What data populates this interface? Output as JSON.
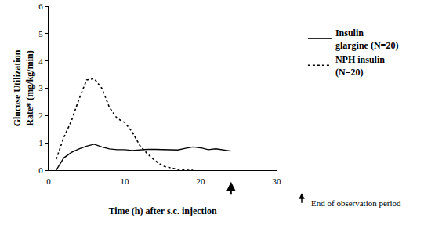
{
  "chart_data": {
    "type": "line",
    "x_label": "Time (h) after s.c. injection",
    "y_label": "Glucose Utilization Rate* (mg/kg/min)",
    "xlim": [
      0,
      30
    ],
    "xticks": [
      0,
      10,
      20,
      30
    ],
    "ylim": [
      0,
      6
    ],
    "yticks": [
      0,
      1,
      2,
      3,
      4,
      5,
      6
    ],
    "grid": false,
    "legend": "right",
    "series": [
      {
        "name": "Insulin glargine (N=20)",
        "color": "#000000",
        "line_style": "solid",
        "x": [
          1,
          2,
          3,
          4,
          5,
          6,
          7,
          8,
          9,
          10,
          11,
          12,
          13,
          14,
          15,
          16,
          17,
          18,
          19,
          20,
          21,
          22,
          23,
          24
        ],
        "values": [
          0,
          0.45,
          0.65,
          0.78,
          0.88,
          0.95,
          0.85,
          0.78,
          0.75,
          0.75,
          0.72,
          0.75,
          0.76,
          0.76,
          0.76,
          0.76,
          0.74,
          0.8,
          0.85,
          0.82,
          0.75,
          0.78,
          0.75,
          0.7
        ]
      },
      {
        "name": "NPH insulin (N=20)",
        "color": "#000000",
        "line_style": "dot",
        "x": [
          1,
          2,
          3,
          4,
          5,
          6,
          7,
          8,
          9,
          10,
          11,
          12,
          13,
          14,
          15,
          16,
          17,
          18,
          19
        ],
        "values": [
          0.4,
          1.2,
          1.8,
          2.6,
          3.3,
          3.35,
          3.0,
          2.3,
          1.9,
          1.75,
          1.4,
          0.9,
          0.6,
          0.35,
          0.15,
          0.08,
          0.03,
          0,
          0
        ]
      }
    ],
    "annotations": [
      {
        "x": 24,
        "text": "End of observation period"
      }
    ]
  }
}
